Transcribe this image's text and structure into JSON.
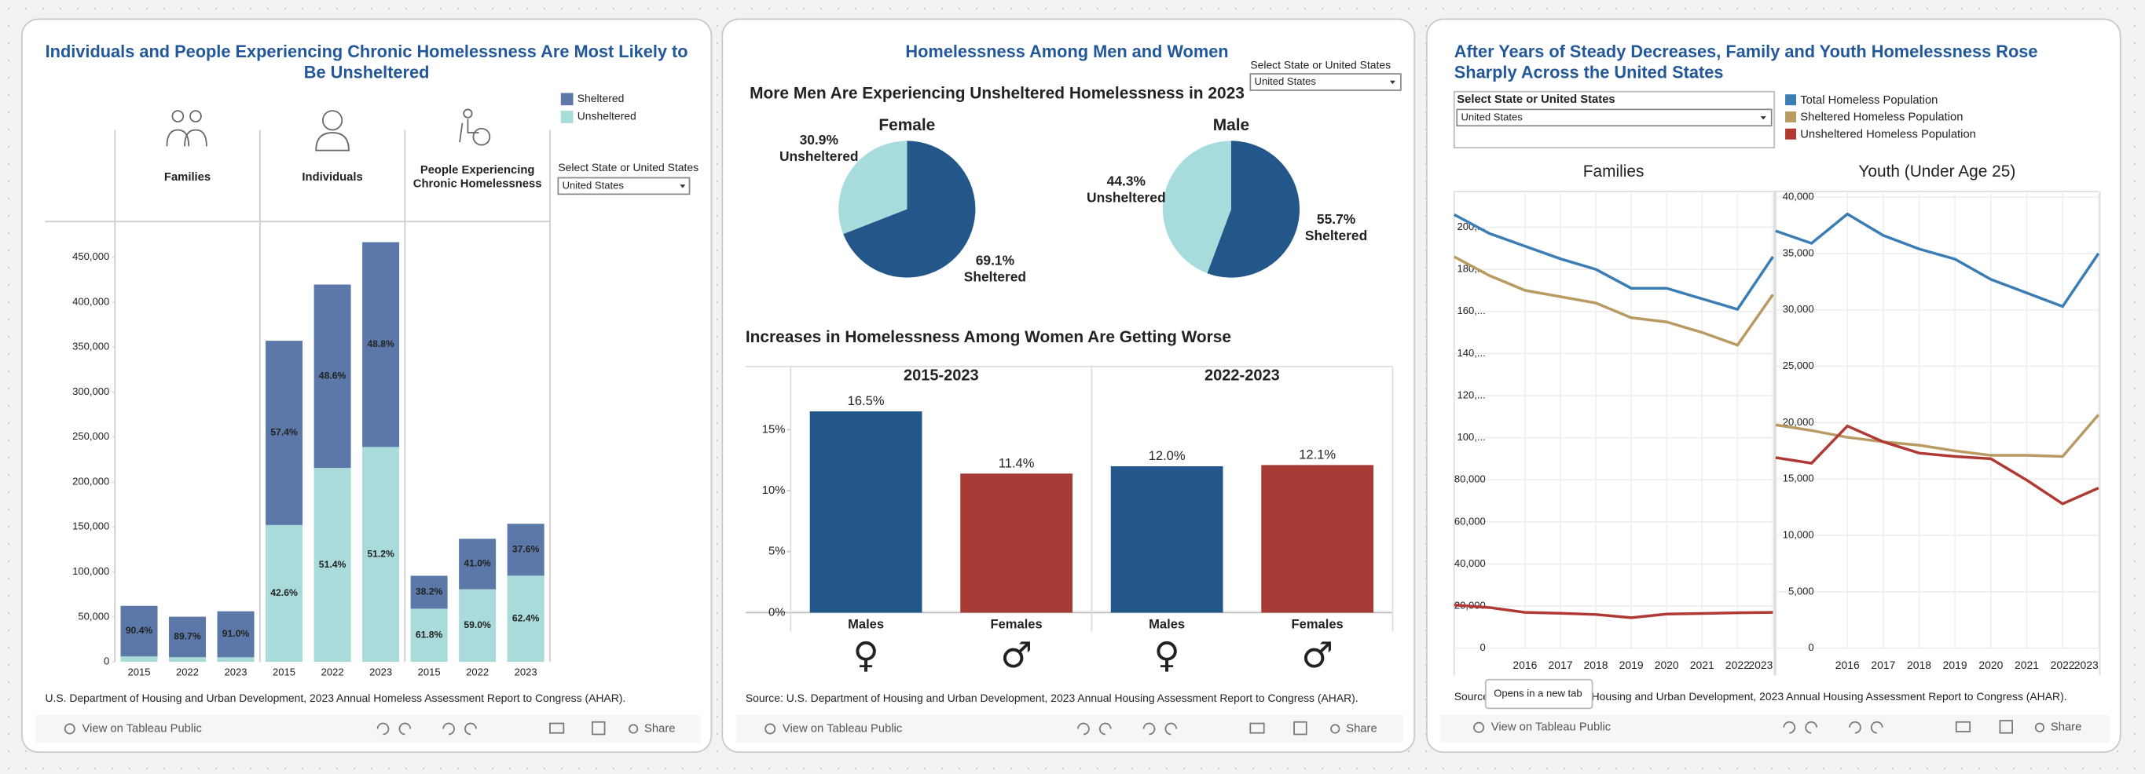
{
  "panels": [
    {
      "title": "Individuals and People Experiencing Chronic Homelessness Are Most Likely to Be Unsheltered",
      "selector_label": "Select State or United States",
      "selector_value": "United States",
      "source": "U.S. Department of Housing and Urban Development, 2023 Annual Homeless Assessment Report to Congress (AHAR).",
      "view_link": "View on Tableau Public",
      "share": "Share"
    },
    {
      "title": "Homelessness Among Men and Women",
      "heading": "More Men Are Experiencing Unsheltered Homelessness in 2023",
      "selector_label": "Select State or United States",
      "selector_value": "United States",
      "source": "Source: U.S. Department of Housing and Urban Development, 2023 Annual Housing Assessment Report to Congress (AHAR).",
      "view_link": "View on Tableau Public",
      "share": "Share"
    },
    {
      "title": "After Years of Steady Decreases, Family and Youth Homelessness Rose Sharply Across the United States",
      "selector_label": "Select State or United States",
      "selector_value": "United States",
      "source": "Source: U.S. Department of Housing and Urban Development, 2023 Annual Housing Assessment Report to Congress (AHAR).",
      "view_link": "View on Tableau Public",
      "share": "Share"
    }
  ],
  "tooltip": "Opens in a new tab",
  "chart_data": [
    {
      "type": "bar",
      "stacked": true,
      "facets": [
        "Families",
        "Individuals",
        "People Experiencing Chronic Homelessness"
      ],
      "categories": [
        "2015",
        "2022",
        "2023",
        "2015",
        "2022",
        "2023",
        "2015",
        "2022",
        "2023"
      ],
      "series": [
        {
          "name": "Sheltered",
          "color": "#5b78a8",
          "values": [
            56300,
            45000,
            51100,
            204900,
            203900,
            227700,
            36600,
            56100,
            57700
          ],
          "labels": [
            "90.4%",
            "89.7%",
            "91.0%",
            "57.4%",
            "48.6%",
            "48.8%",
            "38.2%",
            "41.0%",
            "37.6%"
          ]
        },
        {
          "name": "Unsheltered",
          "color": "#a8dbd9",
          "values": [
            6000,
            5200,
            5100,
            152100,
            215600,
            238900,
            59100,
            80700,
            95800
          ],
          "labels": [
            null,
            null,
            null,
            "42.6%",
            "51.4%",
            "51.2%",
            "61.8%",
            "59.0%",
            "62.4%"
          ]
        }
      ],
      "ylim": [
        0,
        485000
      ],
      "yticks": [
        0,
        {
          "value": 50000,
          "label": "50,000"
        },
        {
          "value": 100000,
          "label": "100,000"
        },
        {
          "value": 150000,
          "label": "150,000"
        },
        {
          "value": 200000,
          "label": "200,000"
        },
        {
          "value": 250000,
          "label": "250,000"
        },
        {
          "value": 300000,
          "label": "300,000"
        },
        {
          "value": 350000,
          "label": "350,000"
        },
        {
          "value": 400000,
          "label": "400,000"
        },
        {
          "value": 450000,
          "label": "450,000"
        }
      ]
    },
    {
      "type": "pie",
      "title": "Female",
      "categories": [
        "Unsheltered",
        "Sheltered"
      ],
      "values": [
        30.9,
        69.1
      ],
      "value_labels": [
        "30.9%",
        "69.1%"
      ],
      "colors": [
        "#a8dcdc",
        "#23578a"
      ]
    },
    {
      "type": "pie",
      "title": "Male",
      "categories": [
        "Unsheltered",
        "Sheltered"
      ],
      "values": [
        44.3,
        55.7
      ],
      "value_labels": [
        "44.3%",
        "55.7%"
      ],
      "colors": [
        "#a8dcdc",
        "#23578a"
      ]
    },
    {
      "type": "bar",
      "title": "Increases in Homelessness Among Women Are Getting Worse",
      "facets": [
        "2015-2023",
        "2022-2023"
      ],
      "categories": [
        "Males",
        "Females",
        "Males",
        "Females"
      ],
      "symbols": [
        "♀",
        "♂",
        "♀",
        "♂"
      ],
      "values": [
        16.5,
        11.4,
        12.0,
        12.1
      ],
      "value_labels": [
        "16.5%",
        "11.4%",
        "12.0%",
        "12.1%"
      ],
      "colors": [
        "#23578a",
        "#a63a35",
        "#23578a",
        "#a63a35"
      ],
      "ylim": [
        0,
        18.5
      ],
      "yticks": [
        {
          "value": 0,
          "label": "0%"
        },
        {
          "value": 5,
          "label": "5%"
        },
        {
          "value": 10,
          "label": "10%"
        },
        {
          "value": 15,
          "label": "15%"
        }
      ]
    },
    {
      "type": "line",
      "x": [
        2014,
        2015,
        2016,
        2017,
        2018,
        2019,
        2020,
        2021,
        2022,
        2023
      ],
      "xlim": [
        2014,
        2023
      ],
      "xticks": [
        2016,
        2017,
        2018,
        2019,
        2020,
        2021,
        2022,
        2023
      ],
      "series": [
        {
          "name": "Total Homeless Population",
          "color": "#3a7db5"
        },
        {
          "name": "Sheltered Homeless Population",
          "color": "#b89a62"
        },
        {
          "name": "Unsheltered Homeless Population",
          "color": "#b03a33"
        }
      ],
      "facets": [
        {
          "title": "Families",
          "ylim": [
            0,
            217000
          ],
          "yticks": [
            0,
            {
              "value": 20000,
              "label": "20,000"
            },
            {
              "value": 40000,
              "label": "40,000"
            },
            {
              "value": 60000,
              "label": "60,000"
            },
            {
              "value": 80000,
              "label": "80,000"
            },
            {
              "value": 100000,
              "label": "100,..."
            },
            {
              "value": 120000,
              "label": "120,..."
            },
            {
              "value": 140000,
              "label": "140,..."
            },
            {
              "value": 160000,
              "label": "160,..."
            },
            {
              "value": 180000,
              "label": "180,..."
            },
            {
              "value": 200000,
              "label": "200,..."
            }
          ],
          "values": [
            [
              206000,
              197000,
              191000,
              185000,
              180000,
              171000,
              171000,
              166000,
              161000,
              186000
            ],
            [
              186000,
              177000,
              170000,
              167000,
              164000,
              157000,
              155000,
              150000,
              144000,
              168000
            ],
            [
              20500,
              19300,
              17000,
              16600,
              16000,
              14500,
              16200,
              16500,
              16800,
              17000
            ]
          ]
        },
        {
          "title": "Youth (Under Age 25)",
          "ylim": [
            0,
            40500
          ],
          "yticks": [
            0,
            {
              "value": 5000,
              "label": "5,000"
            },
            {
              "value": 10000,
              "label": "10,000"
            },
            {
              "value": 15000,
              "label": "15,000"
            },
            {
              "value": 20000,
              "label": "20,000"
            },
            {
              "value": 25000,
              "label": "25,000"
            },
            {
              "value": 30000,
              "label": "30,000"
            },
            {
              "value": 35000,
              "label": "35,000"
            },
            {
              "value": 40000,
              "label": "40,000"
            }
          ],
          "values": [
            [
              37000,
              35900,
              38500,
              36600,
              35400,
              34500,
              32700,
              31500,
              30300,
              35000
            ],
            [
              19800,
              19300,
              18700,
              18300,
              18000,
              17500,
              17100,
              17100,
              17000,
              20700
            ],
            [
              16900,
              16400,
              19700,
              18300,
              17300,
              17000,
              16800,
              14900,
              12800,
              14200
            ]
          ]
        }
      ]
    }
  ]
}
